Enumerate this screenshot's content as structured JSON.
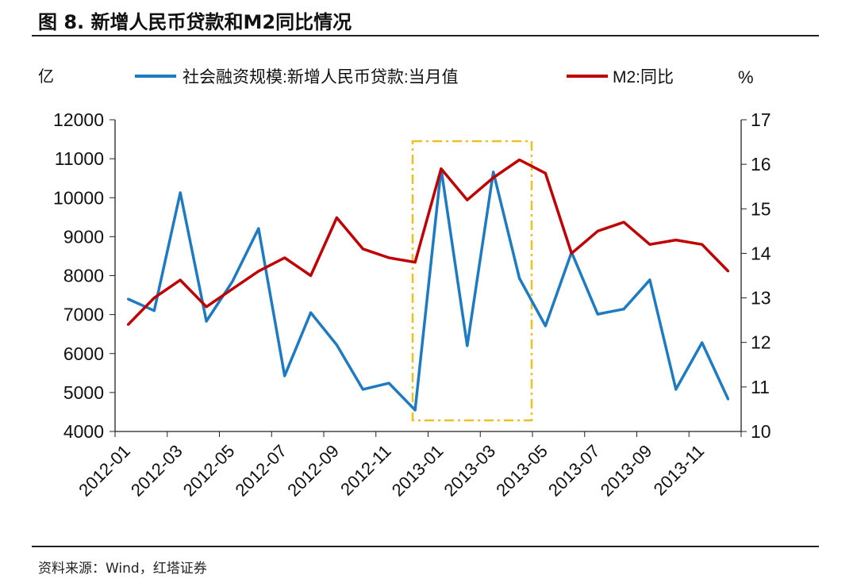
{
  "title": "图 8. 新增人民币贷款和M2同比情况",
  "source": "资料来源：Wind，红塔证券",
  "chart_data": {
    "type": "line",
    "title": "图 8. 新增人民币贷款和M2同比情况",
    "left_unit": "亿",
    "right_unit": "%",
    "x": [
      "2012-01",
      "2012-02",
      "2012-03",
      "2012-04",
      "2012-05",
      "2012-06",
      "2012-07",
      "2012-08",
      "2012-09",
      "2012-10",
      "2012-11",
      "2012-12",
      "2013-01",
      "2013-02",
      "2013-03",
      "2013-04",
      "2013-05",
      "2013-06",
      "2013-07",
      "2013-08",
      "2013-09",
      "2013-10",
      "2013-11",
      "2013-12"
    ],
    "x_tick_labels": [
      "2012-01",
      "2012-03",
      "2012-05",
      "2012-07",
      "2012-09",
      "2012-11",
      "2013-01",
      "2013-03",
      "2013-05",
      "2013-07",
      "2013-09",
      "2013-11"
    ],
    "y_left": {
      "range": [
        4000,
        12000
      ],
      "ticks": [
        "4000",
        "5000",
        "6000",
        "7000",
        "8000",
        "9000",
        "10000",
        "11000",
        "12000"
      ]
    },
    "y_right": {
      "range": [
        10,
        17
      ],
      "ticks": [
        "10",
        "11",
        "12",
        "13",
        "14",
        "15",
        "16",
        "17"
      ]
    },
    "series": [
      {
        "name": "社会融资规模:新增人民币贷款:当月值",
        "axis": "left",
        "color": "#1f7bc1",
        "values": [
          7400,
          7100,
          10130,
          6830,
          7850,
          9210,
          5430,
          7050,
          6220,
          5080,
          5240,
          4550,
          10740,
          6200,
          10660,
          7930,
          6710,
          8600,
          7010,
          7140,
          7890,
          5080,
          6280,
          4830
        ]
      },
      {
        "name": "M2:同比",
        "axis": "right",
        "color": "#c00000",
        "values": [
          12.4,
          13.0,
          13.4,
          12.8,
          13.2,
          13.6,
          13.9,
          13.5,
          14.8,
          14.1,
          13.9,
          13.8,
          15.9,
          15.2,
          15.7,
          16.1,
          15.8,
          14.0,
          14.5,
          14.7,
          14.2,
          14.3,
          14.2,
          13.6
        ]
      }
    ],
    "highlight_color": "#f0c020",
    "legend": "top"
  }
}
